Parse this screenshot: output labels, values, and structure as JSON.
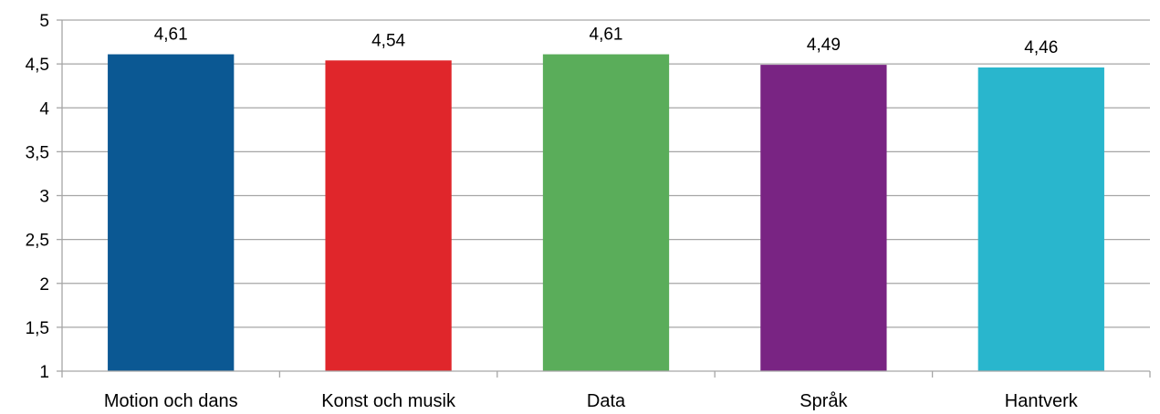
{
  "chart_data": {
    "type": "bar",
    "title": "",
    "xlabel": "",
    "ylabel": "",
    "categories": [
      "Motion och dans",
      "Konst och musik",
      "Data",
      "Språk",
      "Hantverk"
    ],
    "values": [
      4.61,
      4.54,
      4.61,
      4.49,
      4.46
    ],
    "value_labels": [
      "4,61",
      "4,54",
      "4,61",
      "4,49",
      "4,46"
    ],
    "colors": [
      "#0b5893",
      "#e0262b",
      "#5aad5a",
      "#792483",
      "#29b6cd"
    ],
    "ylim": [
      1,
      5
    ],
    "yticks": [
      1,
      1.5,
      2,
      2.5,
      3,
      3.5,
      4,
      4.5,
      5
    ],
    "ytick_labels": [
      "1",
      "1,5",
      "2",
      "2,5",
      "3",
      "3,5",
      "4",
      "4,5",
      "5"
    ],
    "grid": true,
    "gridline_color": "#a6a6a6",
    "legend": "none"
  }
}
